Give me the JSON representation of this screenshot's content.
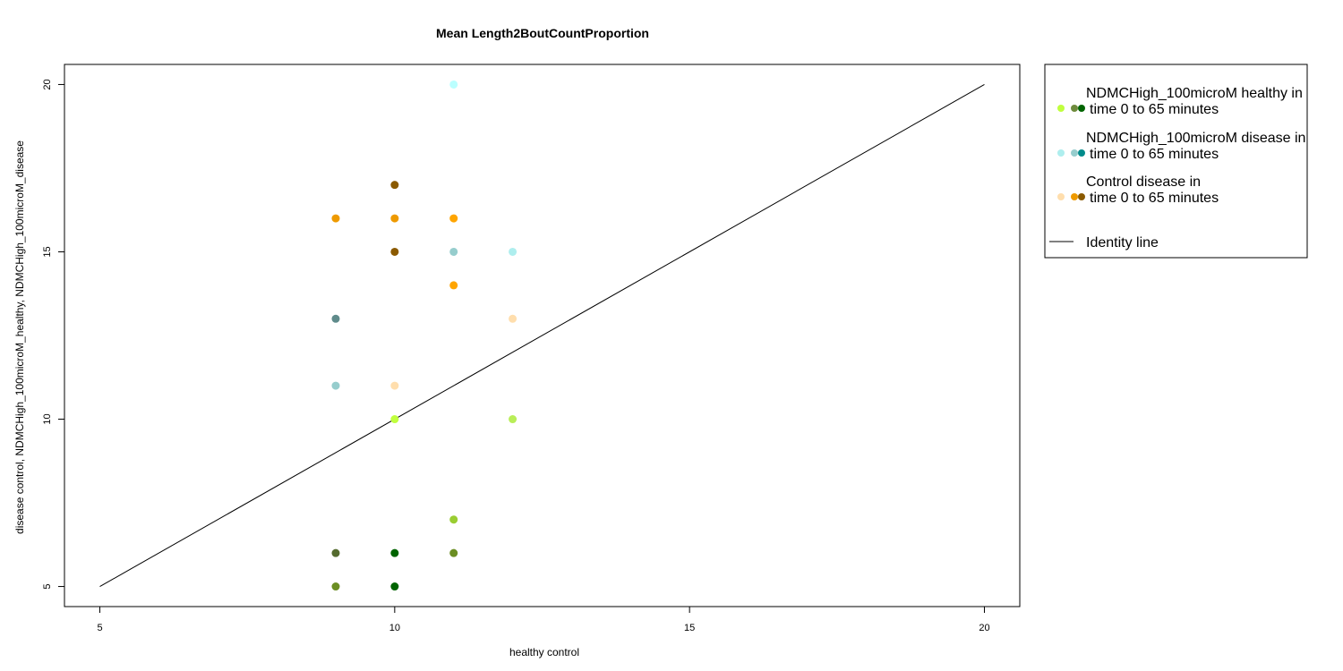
{
  "chart_data": {
    "type": "scatter",
    "title": "Mean Length2BoutCountProportion",
    "xlabel": "healthy control",
    "ylabel": "disease control, NDMCHigh_100microM_healthy, NDMCHigh_100microM_disease",
    "xlim": [
      4.4,
      20.6
    ],
    "ylim": [
      4.4,
      20.6
    ],
    "xticks": [
      "5",
      "10",
      "15",
      "20"
    ],
    "yticks": [
      "5",
      "10",
      "15",
      "20"
    ],
    "grid": false,
    "legend_position": "right-outside",
    "identity_line": {
      "name": "Identity line",
      "from": [
        5,
        5
      ],
      "to": [
        20,
        20
      ],
      "color": "#000000"
    },
    "series": [
      {
        "name": "NDMCHigh_100microM healthy in time 0 to 65 minutes",
        "legend_colors": [
          "#c0ff3e",
          "#6e8b3d",
          "#006400"
        ],
        "points": [
          {
            "x": 10,
            "y": 10,
            "color": "#c0ff3e"
          },
          {
            "x": 12,
            "y": 10,
            "color": "#b9ee58"
          },
          {
            "x": 11,
            "y": 7,
            "color": "#9acd32"
          },
          {
            "x": 9,
            "y": 6,
            "color": "#556b2f"
          },
          {
            "x": 10,
            "y": 6,
            "color": "#006400"
          },
          {
            "x": 11,
            "y": 6,
            "color": "#6b8e23"
          },
          {
            "x": 9,
            "y": 5,
            "color": "#6b8e23"
          },
          {
            "x": 10,
            "y": 5,
            "color": "#006400"
          }
        ]
      },
      {
        "name": "NDMCHigh_100microM disease in time 0 to 65 minutes",
        "legend_colors": [
          "#aeeeee",
          "#96cdcd",
          "#008b8b"
        ],
        "points": [
          {
            "x": 11,
            "y": 20,
            "color": "#bbffff"
          },
          {
            "x": 11,
            "y": 15,
            "color": "#96cdcd"
          },
          {
            "x": 12,
            "y": 15,
            "color": "#aeeeee"
          },
          {
            "x": 9,
            "y": 13,
            "color": "#5f8b8b"
          },
          {
            "x": 9,
            "y": 11,
            "color": "#96cdcd"
          }
        ]
      },
      {
        "name": "Control disease in time 0 to 65 minutes",
        "legend_colors": [
          "#ffdead",
          "#ee9a00",
          "#8b5a00"
        ],
        "points": [
          {
            "x": 10,
            "y": 17,
            "color": "#8b5a00"
          },
          {
            "x": 9,
            "y": 16,
            "color": "#ee9a00"
          },
          {
            "x": 10,
            "y": 16,
            "color": "#ee9a00"
          },
          {
            "x": 11,
            "y": 16,
            "color": "#ffa500"
          },
          {
            "x": 10,
            "y": 15,
            "color": "#8b5a00"
          },
          {
            "x": 11,
            "y": 14,
            "color": "#ffa500"
          },
          {
            "x": 12,
            "y": 13,
            "color": "#ffdead"
          },
          {
            "x": 10,
            "y": 11,
            "color": "#ffdead"
          }
        ]
      }
    ],
    "legend_entries": [
      {
        "line1": "NDMCHigh_100microM healthy in",
        "line2": "time 0 to 65 minutes"
      },
      {
        "line1": "NDMCHigh_100microM disease in",
        "line2": "time 0 to 65 minutes"
      },
      {
        "line1": "Control disease in",
        "line2": "time 0 to 65 minutes"
      }
    ]
  }
}
